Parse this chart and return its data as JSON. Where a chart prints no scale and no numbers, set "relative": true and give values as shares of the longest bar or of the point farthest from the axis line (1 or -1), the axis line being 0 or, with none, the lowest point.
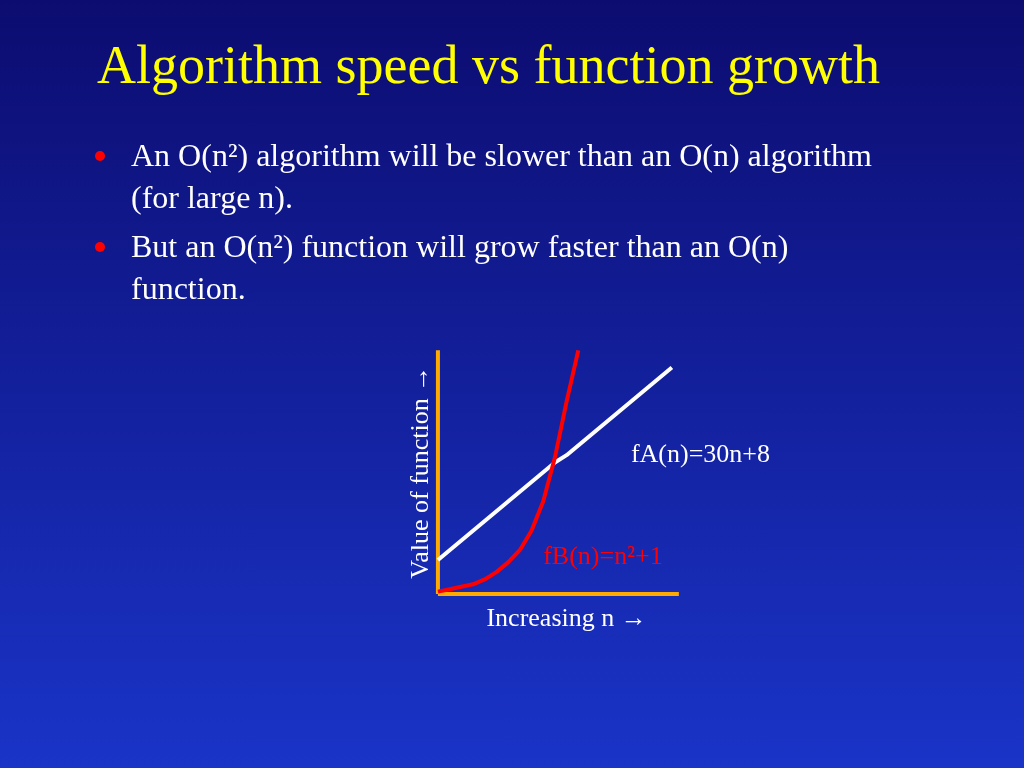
{
  "chart_data": {
    "type": "line",
    "title": "Algorithm speed vs function growth",
    "annotations": [
      "An O(n²) algorithm will be slower than an O(n) algorithm (for large n).",
      "But an O(n²) function will grow faster than an O(n) function."
    ],
    "xlabel": "Increasing n →",
    "ylabel": "Value of function →",
    "relative": true,
    "tick_labels": false,
    "categories": [
      null,
      null,
      null,
      null,
      null,
      null,
      null,
      null,
      null,
      null,
      null,
      null,
      null,
      null,
      null,
      null,
      null,
      null,
      null,
      null,
      null
    ],
    "series": [
      {
        "name": "fA(n)=30n+8",
        "color": "#ffffff",
        "values": [
          0.14,
          0.18,
          0.22,
          0.26,
          0.3,
          0.34,
          0.38,
          0.42,
          0.46,
          0.5,
          0.54,
          0.57,
          0.61,
          0.65,
          0.69,
          0.73,
          0.77,
          0.81,
          0.85,
          0.89,
          0.93
        ]
      },
      {
        "name": "fB(n)=n²+1",
        "color": "#ff0000",
        "values": [
          0.01,
          0.02,
          0.03,
          0.04,
          0.06,
          0.09,
          0.13,
          0.18,
          0.26,
          0.38,
          0.56,
          0.79,
          1.0,
          null,
          null,
          null,
          null,
          null,
          null,
          null,
          null
        ]
      }
    ]
  }
}
